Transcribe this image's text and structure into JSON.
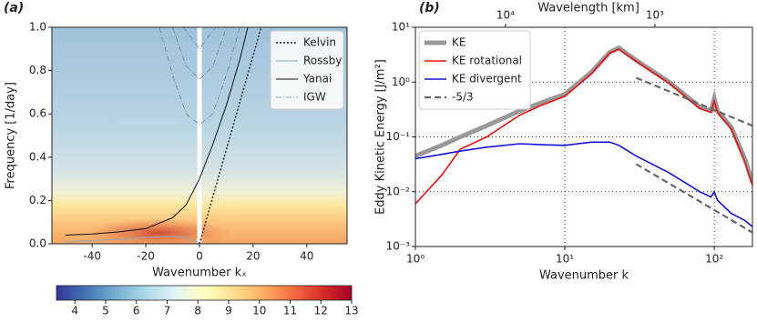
{
  "chart_data": [
    {
      "type": "line",
      "title": "(a)",
      "xlabel": "Wavenumber kₓ",
      "ylabel": "Frequency [1/day]",
      "xlim": [
        -55,
        55
      ],
      "ylim": [
        0,
        1.0
      ],
      "xticks": [
        -40,
        -20,
        0,
        20,
        40
      ],
      "yticks": [
        {
          "value": 0,
          "label": "0.0"
        },
        0.2,
        0.4,
        0.6,
        0.8,
        {
          "value": 1,
          "label": "1.0"
        }
      ],
      "legend": "upper right",
      "series": [
        {
          "name": "Kelvin",
          "color": "#222222",
          "style": "dotted",
          "width": 1.4,
          "x": [
            0,
            23
          ],
          "values": [
            0,
            1.0
          ]
        },
        {
          "name": "Rossby",
          "color": "#8fa8b8",
          "style": "solid",
          "width": 1,
          "x": [
            -50,
            -30,
            -20,
            -10,
            -5,
            0
          ],
          "values": [
            0.01,
            0.02,
            0.03,
            0.035,
            0.03,
            0
          ]
        },
        {
          "name": "Yanai",
          "color": "#111111",
          "style": "solid",
          "width": 1,
          "x": [
            -50,
            -40,
            -30,
            -20,
            -10,
            -5,
            0,
            5,
            10,
            15,
            18
          ],
          "values": [
            0.04,
            0.045,
            0.055,
            0.07,
            0.12,
            0.18,
            0.3,
            0.46,
            0.64,
            0.85,
            1.0
          ]
        },
        {
          "name": "IGW",
          "color": "#6a8a9a",
          "style": "dashdot",
          "width": 0.8,
          "x": [
            -15,
            -10,
            -5,
            0,
            5,
            10,
            15,
            null,
            -10,
            -5,
            0,
            5,
            10,
            null,
            -6,
            0,
            6
          ],
          "values": [
            1.0,
            0.78,
            0.6,
            0.55,
            0.6,
            0.78,
            1.0,
            null,
            1.0,
            0.82,
            0.76,
            0.82,
            1.0,
            null,
            1.0,
            0.9,
            1.0
          ]
        }
      ],
      "colorbar": {
        "lim": [
          3.4,
          13
        ],
        "ticks": [
          4,
          5,
          6,
          7,
          8,
          9,
          10,
          11,
          12,
          13
        ]
      }
    },
    {
      "type": "line",
      "title": "(b)",
      "xlabel": "Wavenumber k",
      "ylabel": "Eddy Kinetic Energy [J/m²]",
      "x2label": "Wavelength [km]",
      "xscale": "log",
      "yscale": "log",
      "grid": true,
      "legend": "upper left",
      "xlim": [
        1,
        180
      ],
      "ylim": [
        0.001,
        10
      ],
      "xticks": [
        {
          "value": 1,
          "label": "10⁰"
        },
        {
          "value": 10,
          "label": "10¹"
        },
        {
          "value": 100,
          "label": "10²"
        }
      ],
      "x2ticks": [
        {
          "value": 10000,
          "label": "10⁴"
        },
        {
          "value": 1000,
          "label": "10³"
        }
      ],
      "yticks": [
        {
          "value": 0.001,
          "label": "10⁻³"
        },
        {
          "value": 0.01,
          "label": "10⁻²"
        },
        {
          "value": 0.1,
          "label": "10⁻¹"
        },
        {
          "value": 1,
          "label": "10⁰"
        },
        {
          "value": 10,
          "label": "10¹"
        }
      ],
      "x": [
        1,
        1.5,
        2,
        3,
        5,
        7,
        10,
        15,
        20,
        23,
        30,
        50,
        80,
        95,
        100,
        105,
        130,
        160,
        180
      ],
      "series": [
        {
          "name": "KE",
          "color": "#999999",
          "style": "solid",
          "width": 5,
          "values": [
            0.045,
            0.07,
            0.1,
            0.16,
            0.3,
            0.42,
            0.6,
            1.5,
            3.5,
            4.2,
            2.5,
            1.0,
            0.35,
            0.3,
            0.5,
            0.3,
            0.15,
            0.04,
            0.015
          ]
        },
        {
          "name": "KE rotational",
          "color": "#ee1111",
          "style": "solid",
          "width": 1.6,
          "values": [
            0.006,
            0.02,
            0.06,
            0.1,
            0.25,
            0.38,
            0.55,
            1.4,
            3.4,
            4.0,
            2.4,
            0.95,
            0.33,
            0.28,
            0.45,
            0.28,
            0.14,
            0.035,
            0.013
          ]
        },
        {
          "name": "KE divergent",
          "color": "#1111dd",
          "style": "solid",
          "width": 1.6,
          "values": [
            0.04,
            0.048,
            0.055,
            0.065,
            0.075,
            0.072,
            0.07,
            0.08,
            0.08,
            0.07,
            0.045,
            0.022,
            0.01,
            0.008,
            0.01,
            0.007,
            0.004,
            0.003,
            0.0023
          ]
        },
        {
          "name": "-5/3",
          "color": "#666666",
          "style": "dashed",
          "width": 2.2,
          "x": [
            30,
            180,
            null,
            30,
            180
          ],
          "values": [
            1.2,
            0.16,
            null,
            0.032,
            0.0018
          ]
        }
      ]
    }
  ]
}
